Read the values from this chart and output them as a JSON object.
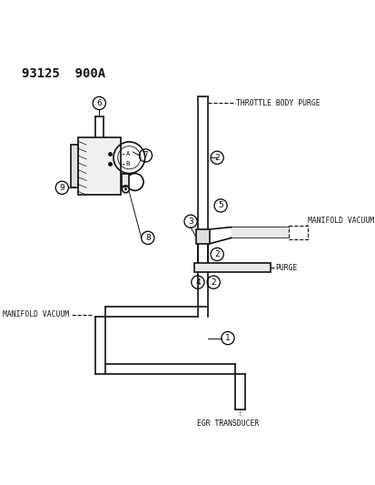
{
  "title": "93125  900A",
  "bg_color": "#ffffff",
  "line_color": "#111111",
  "labels": {
    "throttle_body_purge": "THROTTLE BODY PURGE",
    "manifold_vacuum_top": "MANIFOLD VACUUM",
    "manifold_vacuum_bottom": "MANIFOLD VACUUM",
    "purge": "PURGE",
    "egr_transducer": "EGR TRANSDUCER"
  },
  "font_size_title": 10,
  "font_size_labels": 5.8,
  "font_size_callouts": 6.5,
  "font_size_ab": 5.0
}
